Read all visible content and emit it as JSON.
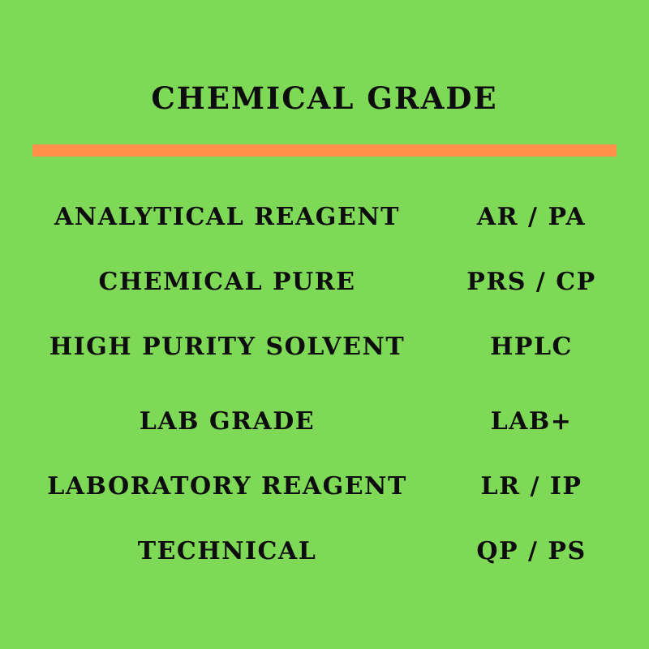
{
  "colors": {
    "background": "#7ED957",
    "divider": "#FF914D",
    "text": "#0d0d0d"
  },
  "title": "CHEMICAL GRADE",
  "rows": [
    {
      "name": "ANALYTICAL REAGENT",
      "abbr": "AR / PA"
    },
    {
      "name": "CHEMICAL PURE",
      "abbr": "PRS / CP"
    },
    {
      "name": "HIGH PURITY SOLVENT",
      "abbr": "HPLC"
    },
    {
      "name": "LAB GRADE",
      "abbr": "LAB+"
    },
    {
      "name": "LABORATORY REAGENT",
      "abbr": "LR / IP"
    },
    {
      "name": "TECHNICAL",
      "abbr": "QP / PS"
    }
  ]
}
